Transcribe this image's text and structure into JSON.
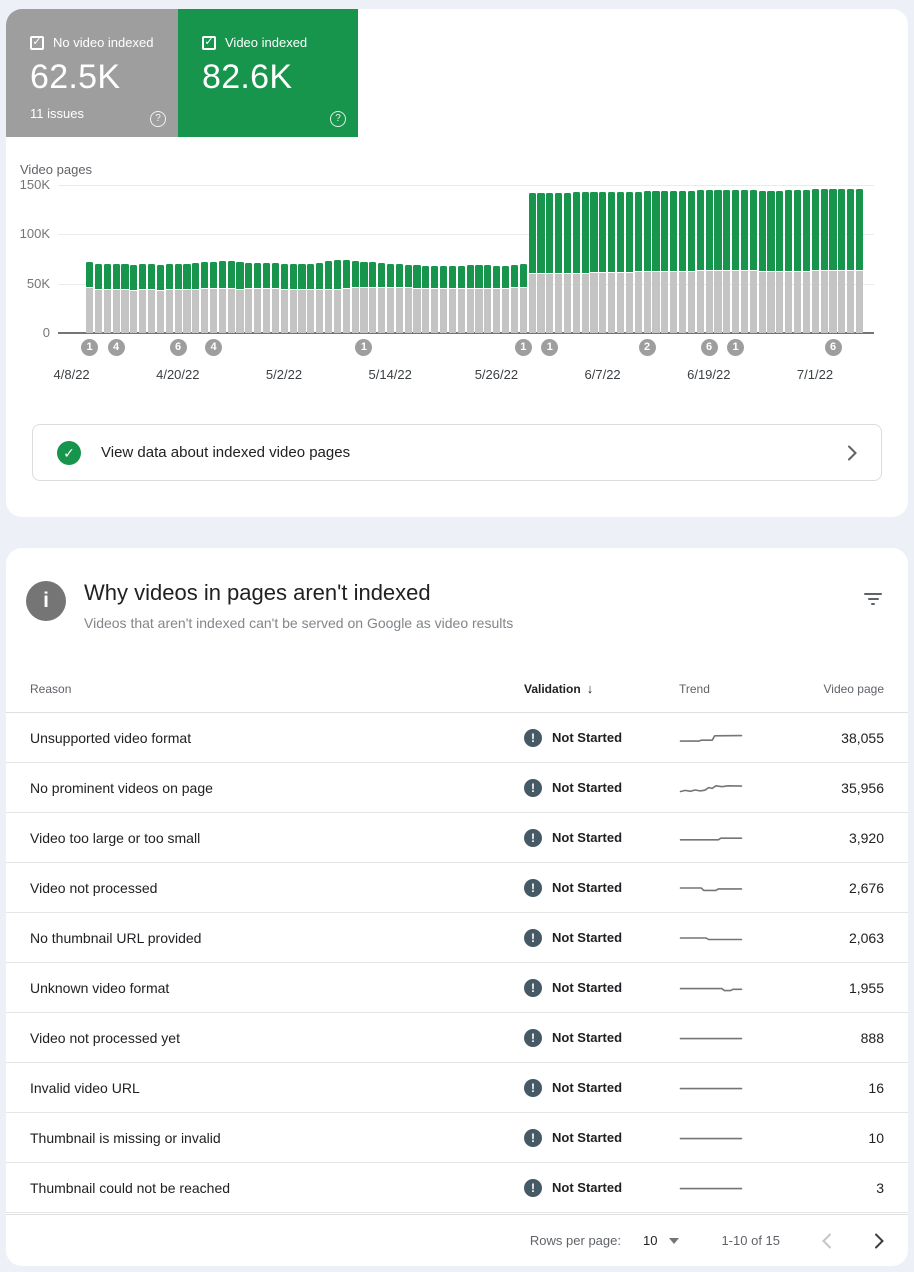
{
  "summary": {
    "tiles": [
      {
        "label": "No video indexed",
        "value": "62.5K",
        "sub": "11 issues",
        "checked": true,
        "color": "#9e9e9e"
      },
      {
        "label": "Video indexed",
        "value": "82.6K",
        "sub": "",
        "checked": true,
        "color": "#17954c"
      }
    ]
  },
  "chart_data": {
    "type": "stacked_bar",
    "title": "Video pages",
    "unit": "thousands of pages",
    "ylim": [
      0,
      150000
    ],
    "y_ticks": [
      {
        "label": "150K",
        "value": 150
      },
      {
        "label": "100K",
        "value": 100
      },
      {
        "label": "50K",
        "value": 50
      },
      {
        "label": "0",
        "value": 0
      }
    ],
    "x_labels": [
      {
        "label": "4/8/22",
        "day": 0
      },
      {
        "label": "4/20/22",
        "day": 12
      },
      {
        "label": "5/2/22",
        "day": 24
      },
      {
        "label": "5/14/22",
        "day": 36
      },
      {
        "label": "5/26/22",
        "day": 48
      },
      {
        "label": "6/7/22",
        "day": 60
      },
      {
        "label": "6/19/22",
        "day": 72
      },
      {
        "label": "7/1/22",
        "day": 84
      }
    ],
    "annotations": [
      {
        "day": 0,
        "count": "1"
      },
      {
        "day": 3,
        "count": "4"
      },
      {
        "day": 10,
        "count": "6"
      },
      {
        "day": 14,
        "count": "4"
      },
      {
        "day": 31,
        "count": "1"
      },
      {
        "day": 49,
        "count": "1"
      },
      {
        "day": 52,
        "count": "1"
      },
      {
        "day": 63,
        "count": "2"
      },
      {
        "day": 70,
        "count": "6"
      },
      {
        "day": 73,
        "count": "1"
      },
      {
        "day": 84,
        "count": "6"
      }
    ],
    "series": [
      {
        "name": "No video indexed",
        "color": "#c4c4c4",
        "values": [
          46,
          44,
          44,
          44,
          44,
          43,
          44,
          44,
          43,
          44,
          44,
          44,
          44,
          45,
          45,
          45,
          45,
          44,
          45,
          45,
          45,
          45,
          44,
          44,
          44,
          44,
          44,
          44,
          44,
          45,
          46,
          46,
          46,
          46,
          46,
          46,
          46,
          45,
          45,
          45,
          45,
          45,
          45,
          45,
          45,
          45,
          45,
          45,
          46,
          46,
          60,
          60,
          60,
          60,
          60,
          60,
          60,
          61,
          61,
          61,
          61,
          61,
          62,
          62,
          62,
          62,
          62,
          62,
          62,
          63,
          63,
          63,
          63,
          63,
          63,
          63,
          62,
          62,
          62,
          62,
          62,
          62,
          63,
          63,
          63,
          63,
          63,
          63
        ]
      },
      {
        "name": "Video indexed",
        "color": "#17954c",
        "values": [
          26,
          26,
          26,
          26,
          26,
          26,
          26,
          26,
          26,
          26,
          26,
          26,
          27,
          27,
          27,
          28,
          28,
          28,
          26,
          26,
          26,
          26,
          26,
          26,
          26,
          26,
          27,
          29,
          30,
          29,
          27,
          26,
          26,
          25,
          24,
          24,
          23,
          24,
          23,
          23,
          23,
          23,
          23,
          24,
          24,
          24,
          23,
          23,
          23,
          24,
          82,
          82,
          82,
          82,
          82,
          83,
          83,
          82,
          82,
          82,
          82,
          82,
          81,
          82,
          82,
          82,
          82,
          82,
          82,
          82,
          82,
          82,
          82,
          82,
          82,
          82,
          82,
          82,
          82,
          83,
          83,
          83,
          83,
          83,
          83,
          83,
          83,
          83
        ]
      }
    ]
  },
  "banner": {
    "label": "View data about indexed video pages"
  },
  "issues": {
    "title": "Why videos in pages aren't indexed",
    "subtitle": "Videos that aren't indexed can't be served on Google as video results",
    "columns": {
      "reason": "Reason",
      "validation": "Validation",
      "trend": "Trend",
      "video_page": "Video page"
    },
    "rows": [
      {
        "reason": "Unsupported video format",
        "validation": "Not Started",
        "video_pages": "38,055",
        "trend": [
          [
            0,
            0.78
          ],
          [
            0.3,
            0.78
          ],
          [
            0.34,
            0.7
          ],
          [
            0.52,
            0.7
          ],
          [
            0.56,
            0.3
          ],
          [
            1,
            0.28
          ]
        ]
      },
      {
        "reason": "No prominent videos on page",
        "validation": "Not Started",
        "video_pages": "35,956",
        "trend": [
          [
            0,
            0.82
          ],
          [
            0.08,
            0.72
          ],
          [
            0.16,
            0.8
          ],
          [
            0.24,
            0.68
          ],
          [
            0.32,
            0.76
          ],
          [
            0.4,
            0.7
          ],
          [
            0.46,
            0.46
          ],
          [
            0.52,
            0.54
          ],
          [
            0.58,
            0.3
          ],
          [
            0.68,
            0.38
          ],
          [
            0.78,
            0.3
          ],
          [
            1,
            0.33
          ]
        ]
      },
      {
        "reason": "Video too large or too small",
        "validation": "Not Started",
        "video_pages": "3,920",
        "trend": [
          [
            0,
            0.66
          ],
          [
            0.62,
            0.66
          ],
          [
            0.66,
            0.52
          ],
          [
            1,
            0.52
          ]
        ]
      },
      {
        "reason": "Video not processed",
        "validation": "Not Started",
        "video_pages": "2,676",
        "trend": [
          [
            0,
            0.5
          ],
          [
            0.34,
            0.5
          ],
          [
            0.38,
            0.72
          ],
          [
            0.58,
            0.72
          ],
          [
            0.62,
            0.58
          ],
          [
            1,
            0.58
          ]
        ]
      },
      {
        "reason": "No thumbnail URL provided",
        "validation": "Not Started",
        "video_pages": "2,063",
        "trend": [
          [
            0,
            0.5
          ],
          [
            0.42,
            0.5
          ],
          [
            0.46,
            0.64
          ],
          [
            1,
            0.64
          ]
        ]
      },
      {
        "reason": "Unknown video format",
        "validation": "Not Started",
        "video_pages": "1,955",
        "trend": [
          [
            0,
            0.55
          ],
          [
            0.68,
            0.55
          ],
          [
            0.72,
            0.74
          ],
          [
            0.82,
            0.74
          ],
          [
            0.86,
            0.62
          ],
          [
            1,
            0.62
          ]
        ]
      },
      {
        "reason": "Video not processed yet",
        "validation": "Not Started",
        "video_pages": "888",
        "trend": [
          [
            0,
            0.55
          ],
          [
            1,
            0.55
          ]
        ]
      },
      {
        "reason": "Invalid video URL",
        "validation": "Not Started",
        "video_pages": "16",
        "trend": [
          [
            0,
            0.55
          ],
          [
            1,
            0.55
          ]
        ]
      },
      {
        "reason": "Thumbnail is missing or invalid",
        "validation": "Not Started",
        "video_pages": "10",
        "trend": [
          [
            0,
            0.55
          ],
          [
            1,
            0.55
          ]
        ]
      },
      {
        "reason": "Thumbnail could not be reached",
        "validation": "Not Started",
        "video_pages": "3",
        "trend": [
          [
            0,
            0.55
          ],
          [
            1,
            0.55
          ]
        ]
      }
    ],
    "pagination": {
      "rows_per_page_label": "Rows per page:",
      "rows_per_page": "10",
      "range_label": "1-10 of 15"
    }
  }
}
